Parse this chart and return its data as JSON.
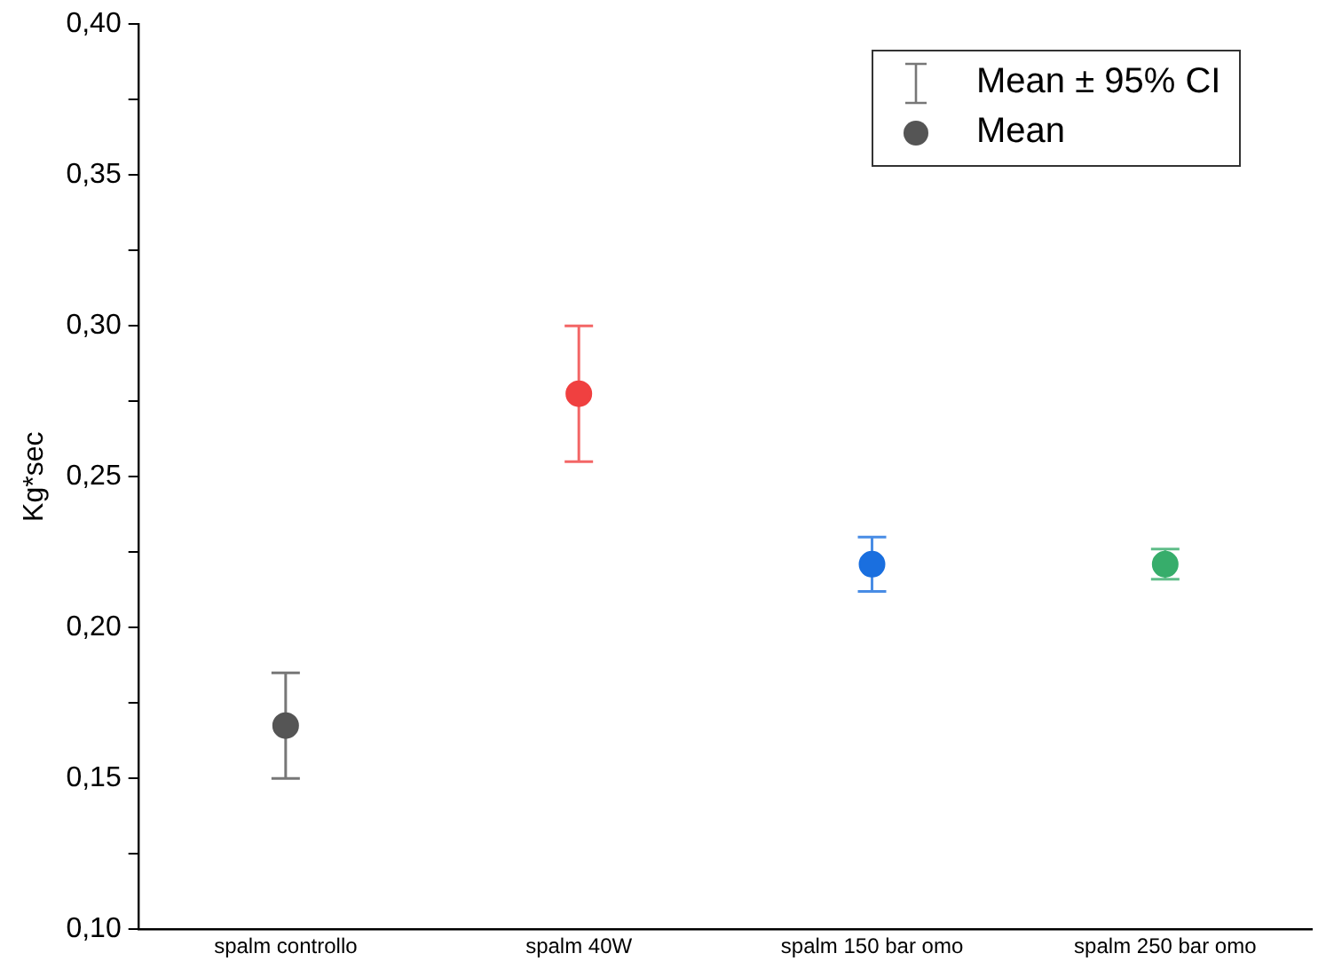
{
  "chart_data": {
    "type": "scatter",
    "ylabel": "Kg*sec",
    "categories": [
      "spalm controllo",
      "spalm 40W",
      "spalm 150 bar omo",
      "spalm 250 bar omo"
    ],
    "series": [
      {
        "name": "Mean",
        "color": "#555555",
        "colors": [
          "#555555",
          "#f04040",
          "#1a6fdf",
          "#37ad6b"
        ],
        "values": [
          0.1675,
          0.2775,
          0.221,
          0.221
        ],
        "errors": [
          [
            0.15,
            0.185
          ],
          [
            0.255,
            0.3
          ],
          [
            0.212,
            0.23
          ],
          [
            0.216,
            0.226
          ]
        ]
      }
    ],
    "annotations": [
      "Mean ± 95% CI"
    ],
    "ylim": [
      0.1,
      0.4
    ],
    "yticks": [
      {
        "value": 0.1,
        "label": "0,10"
      },
      {
        "value": 0.125,
        "label": null
      },
      {
        "value": 0.15,
        "label": "0,15"
      },
      {
        "value": 0.175,
        "label": null
      },
      {
        "value": 0.2,
        "label": "0,20"
      },
      {
        "value": 0.225,
        "label": null
      },
      {
        "value": 0.25,
        "label": "0,25"
      },
      {
        "value": 0.275,
        "label": null
      },
      {
        "value": 0.3,
        "label": "0,30"
      },
      {
        "value": 0.325,
        "label": null
      },
      {
        "value": 0.35,
        "label": "0,35"
      },
      {
        "value": 0.375,
        "label": null
      },
      {
        "value": 0.4,
        "label": "0,40"
      }
    ],
    "marker": "circle",
    "legend": "top right",
    "grid": false
  }
}
